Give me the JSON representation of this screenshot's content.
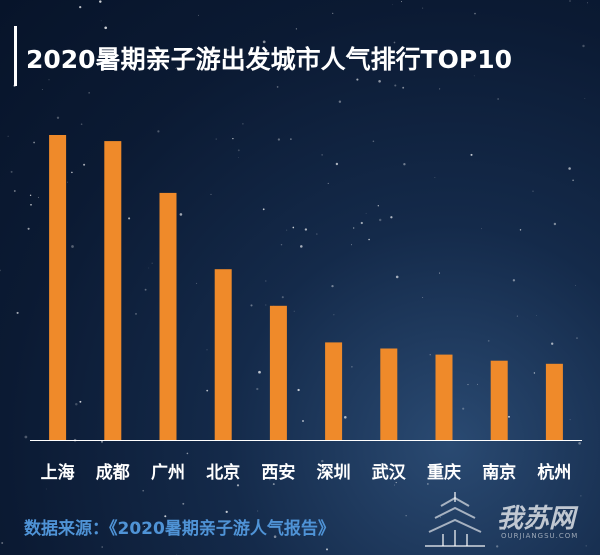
{
  "title": "2020暑期亲子游出发城市人气排行TOP10",
  "source": "数据来源：《2020暑期亲子游人气报告》",
  "watermark": {
    "text": "我苏网",
    "sub": "OURJIANGSU.COM"
  },
  "colors": {
    "bar": "#ef8a2a",
    "axis": "#ffffff",
    "label": "#ffffff",
    "source": "#4f93d6"
  },
  "chart_data": {
    "type": "bar",
    "title": "2020暑期亲子游出发城市人气排行TOP10",
    "categories": [
      "上海",
      "成都",
      "广州",
      "北京",
      "西安",
      "深圳",
      "武汉",
      "重庆",
      "南京",
      "杭州"
    ],
    "values": [
      100,
      98,
      81,
      56,
      44,
      32,
      30,
      28,
      26,
      25
    ],
    "ylim": [
      0,
      100
    ],
    "grid": false,
    "legend": "none"
  }
}
